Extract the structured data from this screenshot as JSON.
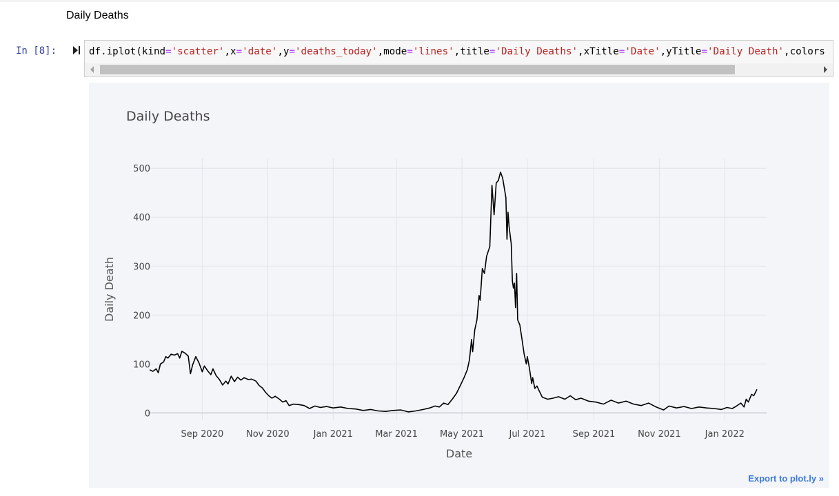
{
  "notebook": {
    "markdown_heading": "Daily Deaths",
    "cell_prompt": "In [8]:",
    "code_tokens": [
      {
        "t": "df.iplot(kind",
        "c": "plain"
      },
      {
        "t": "=",
        "c": "op"
      },
      {
        "t": "'scatter'",
        "c": "str"
      },
      {
        "t": ",x",
        "c": "plain"
      },
      {
        "t": "=",
        "c": "op"
      },
      {
        "t": "'date'",
        "c": "str"
      },
      {
        "t": ",y",
        "c": "plain"
      },
      {
        "t": "=",
        "c": "op"
      },
      {
        "t": "'deaths_today'",
        "c": "str"
      },
      {
        "t": ",mode",
        "c": "plain"
      },
      {
        "t": "=",
        "c": "op"
      },
      {
        "t": "'lines'",
        "c": "str"
      },
      {
        "t": ",title",
        "c": "plain"
      },
      {
        "t": "=",
        "c": "op"
      },
      {
        "t": "'Daily Deaths'",
        "c": "str"
      },
      {
        "t": ",xTitle",
        "c": "plain"
      },
      {
        "t": "=",
        "c": "op"
      },
      {
        "t": "'Date'",
        "c": "str"
      },
      {
        "t": ",yTitle",
        "c": "plain"
      },
      {
        "t": "=",
        "c": "op"
      },
      {
        "t": "'Daily Death'",
        "c": "str"
      },
      {
        "t": ",colors",
        "c": "plain"
      }
    ],
    "export_link": "Export to plot.ly »"
  },
  "colors": {
    "plot_background": "#f4f5f9",
    "line": "#000000",
    "grid": "#e2e4ea",
    "prompt": "#303f9f",
    "string": "#ba2121",
    "operator": "#aa22ff",
    "export_link": "#3d7bd9"
  },
  "chart_data": {
    "type": "line",
    "title": "Daily Deaths",
    "xlabel": "Date",
    "ylabel": "Daily Death",
    "x_type": "date",
    "xlim": [
      "2020-07-12",
      "2022-02-09"
    ],
    "ylim": [
      -15,
      520
    ],
    "grid": true,
    "legend": "none",
    "y_ticks": [
      0,
      100,
      200,
      300,
      400,
      500
    ],
    "x_ticks": [
      {
        "date": "2020-09-01",
        "label": "Sep 2020"
      },
      {
        "date": "2020-11-01",
        "label": "Nov 2020"
      },
      {
        "date": "2021-01-01",
        "label": "Jan 2021"
      },
      {
        "date": "2021-03-01",
        "label": "Mar 2021"
      },
      {
        "date": "2021-05-01",
        "label": "May 2021"
      },
      {
        "date": "2021-07-01",
        "label": "Jul 2021"
      },
      {
        "date": "2021-09-01",
        "label": "Sep 2021"
      },
      {
        "date": "2021-11-01",
        "label": "Nov 2021"
      },
      {
        "date": "2022-01-01",
        "label": "Jan 2022"
      }
    ],
    "series": [
      {
        "line_color": "#000000",
        "points": [
          [
            "2020-07-14",
            88
          ],
          [
            "2020-07-17",
            85
          ],
          [
            "2020-07-20",
            90
          ],
          [
            "2020-07-22",
            82
          ],
          [
            "2020-07-24",
            100
          ],
          [
            "2020-07-27",
            104
          ],
          [
            "2020-07-29",
            115
          ],
          [
            "2020-07-31",
            112
          ],
          [
            "2020-08-03",
            120
          ],
          [
            "2020-08-06",
            118
          ],
          [
            "2020-08-09",
            121
          ],
          [
            "2020-08-11",
            112
          ],
          [
            "2020-08-13",
            126
          ],
          [
            "2020-08-16",
            122
          ],
          [
            "2020-08-19",
            116
          ],
          [
            "2020-08-21",
            80
          ],
          [
            "2020-08-23",
            98
          ],
          [
            "2020-08-26",
            115
          ],
          [
            "2020-08-29",
            102
          ],
          [
            "2020-09-01",
            84
          ],
          [
            "2020-09-03",
            96
          ],
          [
            "2020-09-06",
            86
          ],
          [
            "2020-09-09",
            78
          ],
          [
            "2020-09-11",
            90
          ],
          [
            "2020-09-14",
            76
          ],
          [
            "2020-09-17",
            68
          ],
          [
            "2020-09-20",
            57
          ],
          [
            "2020-09-23",
            65
          ],
          [
            "2020-09-25",
            59
          ],
          [
            "2020-09-28",
            75
          ],
          [
            "2020-10-01",
            64
          ],
          [
            "2020-10-04",
            73
          ],
          [
            "2020-10-07",
            67
          ],
          [
            "2020-10-10",
            72
          ],
          [
            "2020-10-14",
            68
          ],
          [
            "2020-10-17",
            69
          ],
          [
            "2020-10-21",
            65
          ],
          [
            "2020-10-24",
            56
          ],
          [
            "2020-10-27",
            51
          ],
          [
            "2020-10-30",
            42
          ],
          [
            "2020-11-02",
            35
          ],
          [
            "2020-11-05",
            30
          ],
          [
            "2020-11-08",
            34
          ],
          [
            "2020-11-12",
            28
          ],
          [
            "2020-11-15",
            22
          ],
          [
            "2020-11-18",
            25
          ],
          [
            "2020-11-21",
            15
          ],
          [
            "2020-11-25",
            18
          ],
          [
            "2020-11-30",
            17
          ],
          [
            "2020-12-05",
            15
          ],
          [
            "2020-12-10",
            9
          ],
          [
            "2020-12-15",
            14
          ],
          [
            "2020-12-20",
            11
          ],
          [
            "2020-12-26",
            13
          ],
          [
            "2021-01-01",
            10
          ],
          [
            "2021-01-08",
            12
          ],
          [
            "2021-01-15",
            9
          ],
          [
            "2021-01-22",
            8
          ],
          [
            "2021-01-29",
            5
          ],
          [
            "2021-02-05",
            7
          ],
          [
            "2021-02-12",
            4
          ],
          [
            "2021-02-19",
            3
          ],
          [
            "2021-02-26",
            5
          ],
          [
            "2021-03-05",
            6
          ],
          [
            "2021-03-12",
            2
          ],
          [
            "2021-03-19",
            4
          ],
          [
            "2021-03-26",
            7
          ],
          [
            "2021-04-01",
            10
          ],
          [
            "2021-04-06",
            14
          ],
          [
            "2021-04-10",
            12
          ],
          [
            "2021-04-14",
            20
          ],
          [
            "2021-04-18",
            17
          ],
          [
            "2021-04-22",
            28
          ],
          [
            "2021-04-26",
            40
          ],
          [
            "2021-04-30",
            58
          ],
          [
            "2021-05-03",
            72
          ],
          [
            "2021-05-06",
            88
          ],
          [
            "2021-05-08",
            108
          ],
          [
            "2021-05-10",
            150
          ],
          [
            "2021-05-11",
            125
          ],
          [
            "2021-05-13",
            170
          ],
          [
            "2021-05-15",
            190
          ],
          [
            "2021-05-17",
            240
          ],
          [
            "2021-05-18",
            230
          ],
          [
            "2021-05-20",
            295
          ],
          [
            "2021-05-22",
            285
          ],
          [
            "2021-05-24",
            320
          ],
          [
            "2021-05-27",
            340
          ],
          [
            "2021-05-29",
            465
          ],
          [
            "2021-05-31",
            405
          ],
          [
            "2021-06-02",
            470
          ],
          [
            "2021-06-04",
            475
          ],
          [
            "2021-06-06",
            492
          ],
          [
            "2021-06-08",
            480
          ],
          [
            "2021-06-11",
            440
          ],
          [
            "2021-06-12",
            355
          ],
          [
            "2021-06-13",
            410
          ],
          [
            "2021-06-14",
            380
          ],
          [
            "2021-06-16",
            345
          ],
          [
            "2021-06-17",
            270
          ],
          [
            "2021-06-18",
            255
          ],
          [
            "2021-06-19",
            265
          ],
          [
            "2021-06-20",
            215
          ],
          [
            "2021-06-21",
            285
          ],
          [
            "2021-06-22",
            190
          ],
          [
            "2021-06-24",
            180
          ],
          [
            "2021-06-26",
            150
          ],
          [
            "2021-06-28",
            120
          ],
          [
            "2021-06-30",
            100
          ],
          [
            "2021-07-01",
            115
          ],
          [
            "2021-07-03",
            90
          ],
          [
            "2021-07-05",
            60
          ],
          [
            "2021-07-06",
            72
          ],
          [
            "2021-07-08",
            50
          ],
          [
            "2021-07-10",
            55
          ],
          [
            "2021-07-12",
            45
          ],
          [
            "2021-07-15",
            32
          ],
          [
            "2021-07-20",
            28
          ],
          [
            "2021-07-25",
            30
          ],
          [
            "2021-07-30",
            33
          ],
          [
            "2021-08-05",
            28
          ],
          [
            "2021-08-10",
            35
          ],
          [
            "2021-08-15",
            27
          ],
          [
            "2021-08-20",
            30
          ],
          [
            "2021-08-27",
            24
          ],
          [
            "2021-09-03",
            22
          ],
          [
            "2021-09-10",
            18
          ],
          [
            "2021-09-17",
            26
          ],
          [
            "2021-09-24",
            20
          ],
          [
            "2021-10-01",
            24
          ],
          [
            "2021-10-08",
            18
          ],
          [
            "2021-10-15",
            15
          ],
          [
            "2021-10-22",
            20
          ],
          [
            "2021-10-29",
            12
          ],
          [
            "2021-11-05",
            6
          ],
          [
            "2021-11-10",
            14
          ],
          [
            "2021-11-17",
            10
          ],
          [
            "2021-11-24",
            13
          ],
          [
            "2021-12-01",
            9
          ],
          [
            "2021-12-08",
            12
          ],
          [
            "2021-12-15",
            10
          ],
          [
            "2021-12-22",
            9
          ],
          [
            "2021-12-29",
            7
          ],
          [
            "2022-01-03",
            11
          ],
          [
            "2022-01-08",
            9
          ],
          [
            "2022-01-12",
            14
          ],
          [
            "2022-01-16",
            20
          ],
          [
            "2022-01-19",
            12
          ],
          [
            "2022-01-21",
            28
          ],
          [
            "2022-01-23",
            22
          ],
          [
            "2022-01-26",
            38
          ],
          [
            "2022-01-28",
            35
          ],
          [
            "2022-01-31",
            48
          ]
        ]
      }
    ]
  }
}
